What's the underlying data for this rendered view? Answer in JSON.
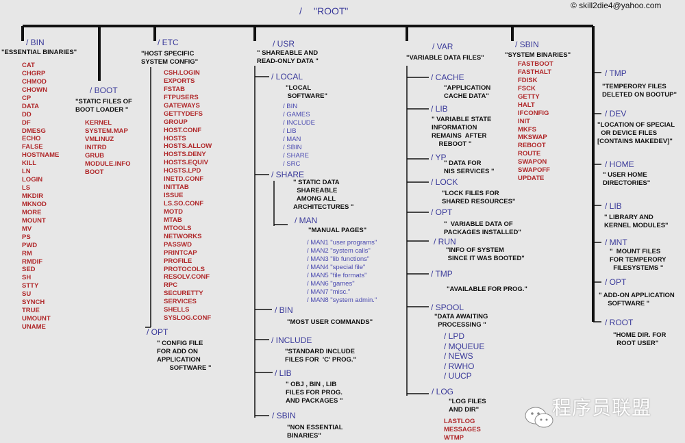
{
  "root": {
    "slash": "/",
    "label": "\"ROOT\""
  },
  "copyright": "© skill2die4@yahoo.com",
  "watermark": "程序员联盟",
  "bin": {
    "name": "/ BIN",
    "desc": "\"ESSENTIAL BINARIES\"",
    "items": [
      "CAT",
      "CHGRP",
      "CHMOD",
      "CHOWN",
      "CP",
      "DATA",
      "DD",
      "DF",
      "DMESG",
      "ECHO",
      "FALSE",
      "HOSTNAME",
      "KILL",
      "LN",
      "LOGIN",
      "LS",
      "MKDIR",
      "MKNOD",
      "MORE",
      "MOUNT",
      "MV",
      "PS",
      "PWD",
      "RM",
      "RMDIF",
      "SED",
      "SH",
      "STTY",
      "SU",
      "SYNCH",
      "TRUE",
      "UMOUNT",
      "UNAME"
    ]
  },
  "boot": {
    "name": "/ BOOT",
    "desc": "\"STATIC FILES OF\nBOOT LOADER \"",
    "items": [
      "KERNEL",
      "SYSTEM.MAP",
      "VMLINUZ",
      "INITRD",
      "GRUB",
      "MODULE.INFO",
      "BOOT"
    ]
  },
  "etc": {
    "name": "/ ETC",
    "desc": "\"HOST SPECIFIC\nSYSTEM CONFIG\"",
    "items": [
      "CSH.LOGIN",
      "EXPORTS",
      "FSTAB",
      "FTPUSERS",
      "GATEWAYS",
      "GETTYDEFS",
      "GROUP",
      "HOST.CONF",
      "HOSTS",
      "HOSTS.ALLOW",
      "HOSTS.DENY",
      "HOSTS.EQUIV",
      "HOSTS.LPD",
      "INETD.CONF",
      "INITTAB",
      "ISSUE",
      "LS.SO.CONF",
      "MOTD",
      "MTAB",
      "MTOOLS",
      "NETWORKS",
      "PASSWD",
      "PRINTCAP",
      "PROFILE",
      "PROTOCOLS",
      "RESOLV.CONF",
      "RPC",
      "SECURETTY",
      "SERVICES",
      "SHELLS",
      "SYSLOG.CONF"
    ],
    "opt": {
      "name": "/ OPT",
      "desc": "\" CONFIG FILE\nFOR ADD ON\nAPPLICATION\n       SOFTWARE \""
    }
  },
  "usr": {
    "name": "/ USR",
    "desc": "\" SHAREABLE AND\nREAD-ONLY DATA \"",
    "local": {
      "name": "/ LOCAL",
      "desc": "\"LOCAL\n SOFTWARE\"",
      "items": [
        "/ BIN",
        "/ GAMES",
        "/ INCLUDE",
        "/ LIB",
        "/ MAN",
        "/ SBIN",
        "/ SHARE",
        "/ SRC"
      ]
    },
    "share": {
      "name": "/ SHARE",
      "desc": "\" STATIC DATA\n  SHAREABLE\n  AMONG ALL\nARCHITECTURES \""
    },
    "man": {
      "name": "/ MAN",
      "desc": "\"MANUAL PAGES\"",
      "items": [
        "/ MAN1 \"user programs\"",
        "/ MAN2 \"system calls\"",
        "/ MAN3 \"lib functions\"",
        "/ MAN4 \"special file\"",
        "/ MAN5 \"file formats\"",
        "/ MAN6 \"games\"",
        "/ MAN7 \"misc.\"",
        "/ MAN8 \"system admin.\""
      ]
    },
    "bin": {
      "name": "/ BIN",
      "desc": "\"MOST USER COMMANDS\""
    },
    "include": {
      "name": "/ INCLUDE",
      "desc": "\"STANDARD INCLUDE\nFILES FOR  'C' PROG.\""
    },
    "lib": {
      "name": "/ LIB",
      "desc": "\" OBJ , BIN , LIB\nFILES FOR PROG.\nAND PACKAGES \""
    },
    "sbin": {
      "name": "/ SBIN",
      "desc": "\"NON ESSENTIAL\nBINARIES\""
    }
  },
  "var": {
    "name": "/ VAR",
    "desc": "\"VARIABLE DATA FILES\"",
    "cache": {
      "name": "/ CACHE",
      "desc": "\"APPLICATION\nCACHE DATA\""
    },
    "lib": {
      "name": "/ LIB",
      "desc": "\" VARIABLE STATE\nINFORMATION\nREMAINS  AFTER\n    REBOOT \""
    },
    "yp": {
      "name": "/ YP",
      "desc": "\" DATA FOR\nNIS SERVICES \""
    },
    "lock": {
      "name": "/ LOCK",
      "desc": "\"LOCK FILES FOR\nSHARED RESOURCES\""
    },
    "opt": {
      "name": "/ OPT",
      "desc": "\"  VARIABLE DATA OF\nPACKAGES INSTALLED\""
    },
    "run": {
      "name": "/ RUN",
      "desc": "\"INFO OF SYSTEM\n SINCE IT WAS BOOTED\""
    },
    "tmp": {
      "name": "/ TMP",
      "desc": "\"AVAILABLE FOR PROG.\""
    },
    "spool": {
      "name": "/ SPOOL",
      "desc": "\"DATA AWAITING\n  PROCESSING \"",
      "items": [
        "/ LPD",
        "/ MQUEUE",
        "/ NEWS",
        "/ RWHO",
        "/ UUCP"
      ]
    },
    "log": {
      "name": "/ LOG",
      "desc": "\"LOG FILES\nAND DIR\"",
      "items": [
        "LASTLOG",
        "MESSAGES",
        "WTMP"
      ]
    }
  },
  "sbin": {
    "name": "/ SBIN",
    "desc": "\"SYSTEM BINARIES\"",
    "items": [
      "FASTBOOT",
      "FASTHALT",
      "FDISK",
      "FSCK",
      "GETTY",
      "HALT",
      "IFCONFIG",
      "INIT",
      "MKFS",
      "MKSWAP",
      "REBOOT",
      "ROUTE",
      "SWAPON",
      "SWAPOFF",
      "UPDATE"
    ]
  },
  "right": [
    {
      "name": "/ TMP",
      "desc": "\"TEMPERORY FILES\nDELETED ON BOOTUP\""
    },
    {
      "name": "/ DEV",
      "desc": "\"LOCATION OF SPECIAL\n  OR DEVICE FILES\n[CONTAINS MAKEDEV]\""
    },
    {
      "name": "/ HOME",
      "desc": "\" USER HOME\nDIRECTORIES\""
    },
    {
      "name": "/ LIB",
      "desc": "\" LIBRARY AND\nKERNEL MODULES\""
    },
    {
      "name": "/ MNT",
      "desc": "\"  MOUNT FILES\nFOR TEMPERORY\n  FILESYSTEMS \""
    },
    {
      "name": "/ OPT",
      "desc": "\" ADD-ON APPLICATION\n     SOFTWARE \""
    },
    {
      "name": "/ ROOT",
      "desc": "\"HOME DIR. FOR\n  ROOT USER\""
    }
  ]
}
